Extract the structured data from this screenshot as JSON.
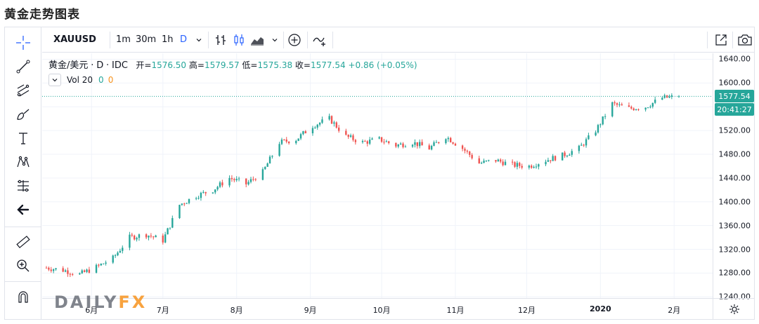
{
  "page": {
    "title": "黄金走势图表"
  },
  "toolbar": {
    "symbol": "XAUUSD",
    "intervals": [
      "1m",
      "30m",
      "1h",
      "D"
    ],
    "active_interval": "D"
  },
  "legend": {
    "name": "黄金/美元",
    "sep1": "·",
    "interval": "D",
    "sep2": "·",
    "source": "IDC",
    "open_label": "开=",
    "open": "1576.50",
    "high_label": "高=",
    "high": "1579.57",
    "low_label": "低=",
    "low": "1575.38",
    "close_label": "收=",
    "close": "1577.54",
    "change": "+0.86",
    "change_pct": "(+0.05%)",
    "vol_label": "Vol 20",
    "vol_a": "0",
    "vol_b": "0"
  },
  "price_axis": {
    "labels": [
      "1640.00",
      "1600.00",
      "1560.00",
      "1520.00",
      "1480.00",
      "1440.00",
      "1400.00",
      "1360.00",
      "1320.00",
      "1280.00",
      "1240.00"
    ],
    "last_price": "1577.54",
    "countdown": "20:41:27"
  },
  "time_axis": {
    "labels": [
      "6月",
      "7月",
      "8月",
      "9月",
      "10月",
      "11月",
      "12月",
      "2020",
      "2月"
    ]
  },
  "watermark": {
    "text_a": "DAILY",
    "text_b": "FX"
  },
  "colors": {
    "up": "#26a69a",
    "down": "#ef5350",
    "accent": "#2962ff",
    "grid": "#f0f3fa"
  },
  "chart_data": {
    "type": "candlestick",
    "ylim": [
      1238,
      1650
    ],
    "anchors": [
      [
        "2019-05-13",
        1289
      ],
      [
        "2019-05-20",
        1285
      ],
      [
        "2019-05-27",
        1278
      ],
      [
        "2019-06-03",
        1290
      ],
      [
        "2019-06-10",
        1305
      ],
      [
        "2019-06-17",
        1340
      ],
      [
        "2019-06-24",
        1345
      ],
      [
        "2019-07-01",
        1335
      ],
      [
        "2019-07-08",
        1395
      ],
      [
        "2019-07-15",
        1410
      ],
      [
        "2019-07-22",
        1420
      ],
      [
        "2019-07-29",
        1440
      ],
      [
        "2019-08-05",
        1430
      ],
      [
        "2019-08-12",
        1450
      ],
      [
        "2019-08-19",
        1500
      ],
      [
        "2019-08-26",
        1505
      ],
      [
        "2019-09-02",
        1528
      ],
      [
        "2019-09-09",
        1540
      ],
      [
        "2019-09-16",
        1510
      ],
      [
        "2019-09-23",
        1500
      ],
      [
        "2019-09-30",
        1505
      ],
      [
        "2019-10-07",
        1495
      ],
      [
        "2019-10-14",
        1500
      ],
      [
        "2019-10-21",
        1490
      ],
      [
        "2019-10-28",
        1510
      ],
      [
        "2019-11-04",
        1490
      ],
      [
        "2019-11-11",
        1465
      ],
      [
        "2019-11-18",
        1470
      ],
      [
        "2019-11-25",
        1462
      ],
      [
        "2019-12-02",
        1460
      ],
      [
        "2019-12-09",
        1470
      ],
      [
        "2019-12-16",
        1478
      ],
      [
        "2019-12-23",
        1490
      ],
      [
        "2019-12-30",
        1520
      ],
      [
        "2020-01-06",
        1565
      ],
      [
        "2020-01-13",
        1557
      ],
      [
        "2020-01-20",
        1560
      ],
      [
        "2020-01-27",
        1575
      ],
      [
        "2020-02-03",
        1577
      ]
    ],
    "last": {
      "open": 1576.5,
      "high": 1579.57,
      "low": 1575.38,
      "close": 1577.54
    }
  }
}
